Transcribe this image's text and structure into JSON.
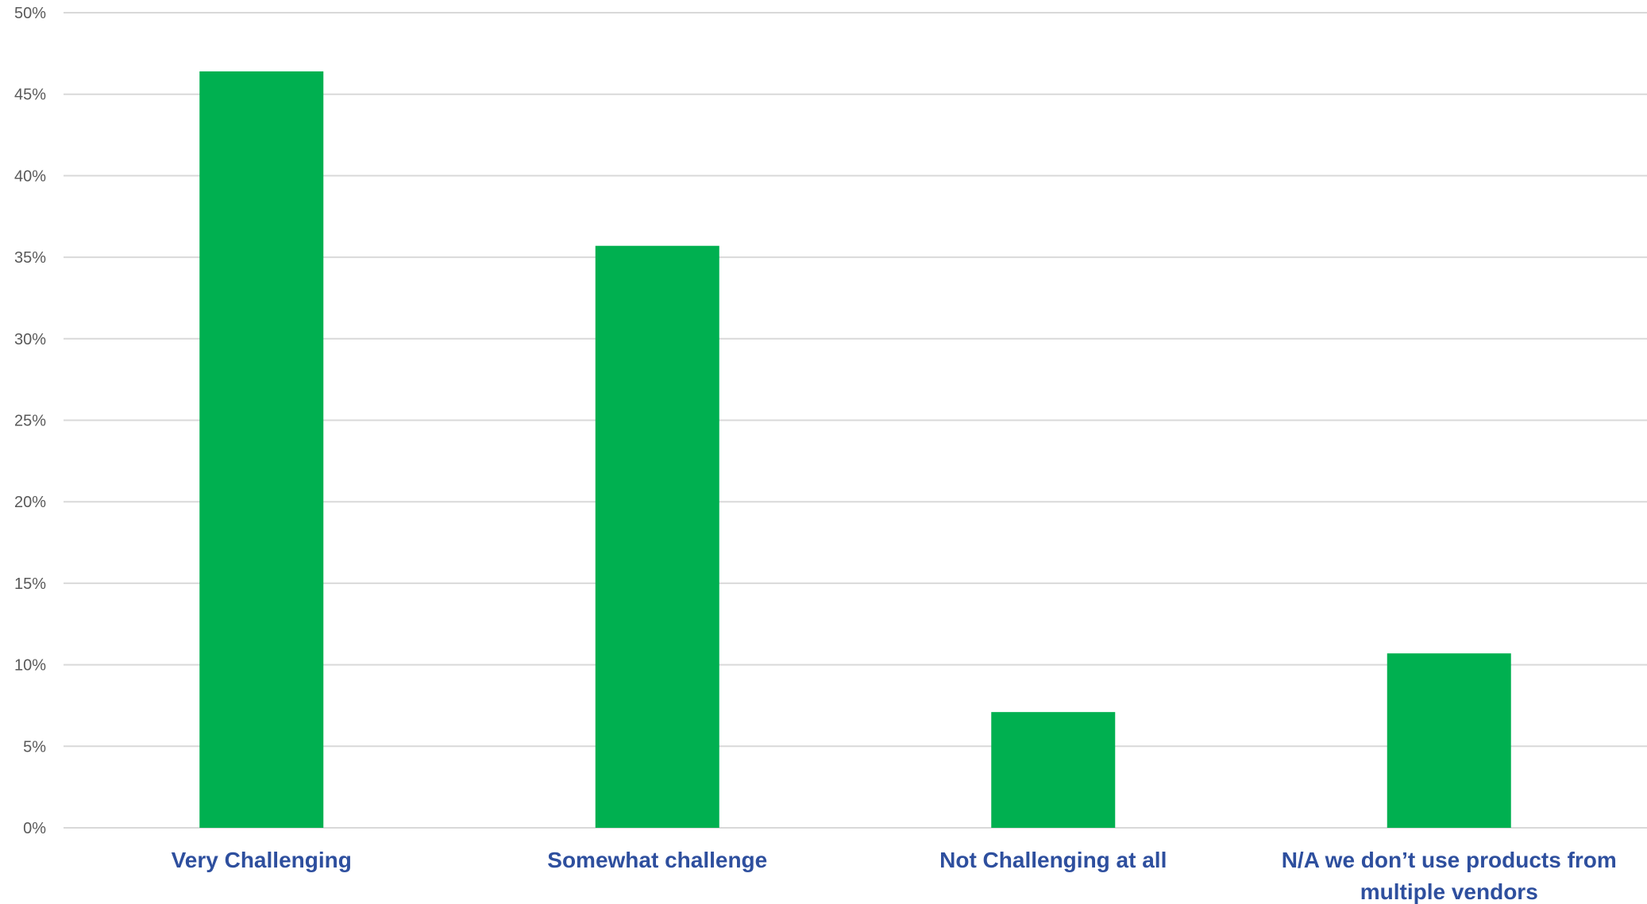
{
  "chart_data": {
    "type": "bar",
    "title": "",
    "xlabel": "",
    "ylabel": "",
    "categories": [
      [
        "Very Challenging"
      ],
      [
        "Somewhat challenge"
      ],
      [
        "Not Challenging at all"
      ],
      [
        "N/A we don’t use products from",
        "multiple vendors"
      ]
    ],
    "values": [
      46.4,
      35.7,
      7.1,
      10.7
    ],
    "ylim": [
      0,
      50
    ],
    "yticks": [
      0,
      5,
      10,
      15,
      20,
      25,
      30,
      35,
      40,
      45,
      50
    ],
    "ytick_suffix": "%",
    "grid": true,
    "legend": "none",
    "colors": {
      "bar": "#00b050",
      "category_text": "#2e4f9e",
      "tick_text": "#595959",
      "grid": "#d9d9d9"
    }
  }
}
